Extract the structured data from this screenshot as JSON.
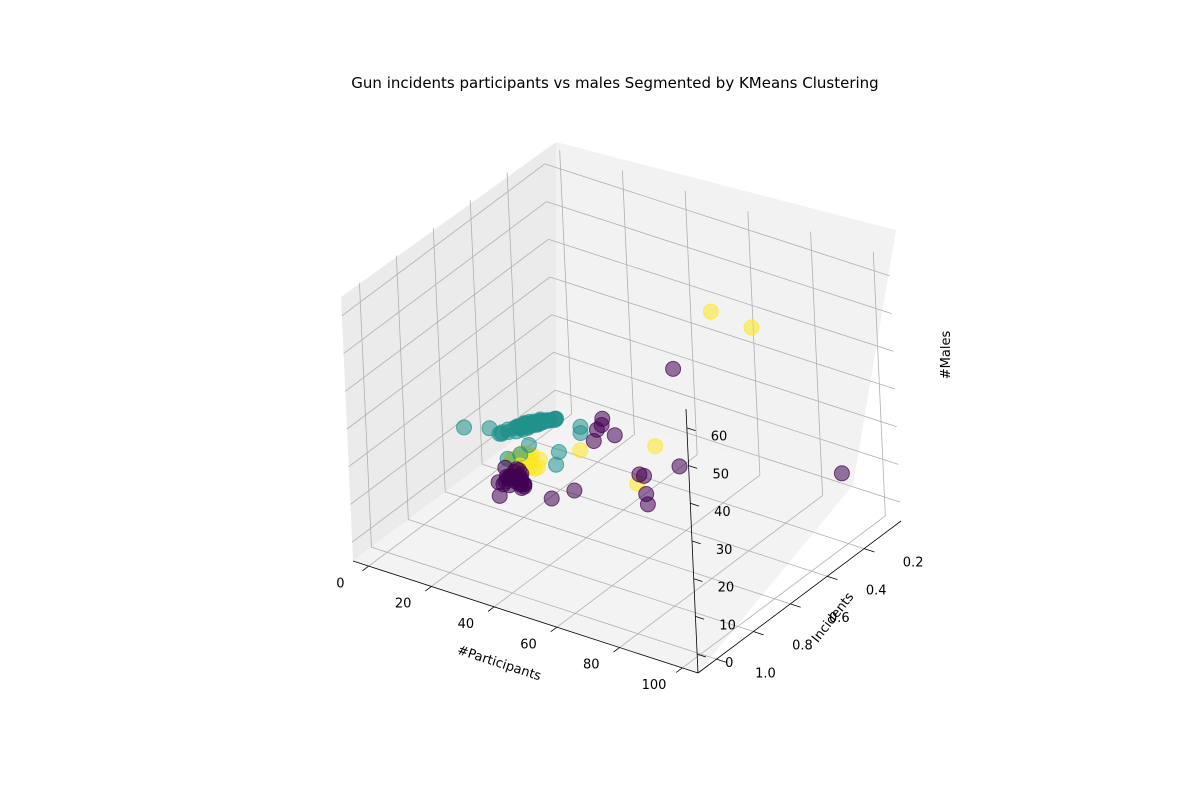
{
  "chart_data": {
    "type": "scatter",
    "title": "Gun incidents participants vs males Segmented by KMeans Clustering",
    "xlabel": "#Participants",
    "ylabel": "Incidents",
    "zlabel": "#Males",
    "x_ticks": [
      0,
      20,
      40,
      60,
      80,
      100
    ],
    "y_ticks": [
      0.2,
      0.4,
      0.6,
      0.8,
      1.0
    ],
    "z_ticks": [
      0,
      10,
      20,
      30,
      40,
      50,
      60
    ],
    "xlim": [
      -5,
      105
    ],
    "ylim": [
      0.0,
      1.1
    ],
    "zlim": [
      -5,
      65
    ],
    "grid": true,
    "series": [
      {
        "color": "#440154",
        "points": [
          [
            28,
            0.85,
            12
          ],
          [
            26,
            0.82,
            14
          ],
          [
            30,
            0.86,
            16
          ],
          [
            27,
            0.78,
            12
          ],
          [
            32,
            0.88,
            18
          ],
          [
            29,
            0.8,
            15
          ],
          [
            34,
            0.9,
            20
          ],
          [
            31,
            0.84,
            17
          ],
          [
            25,
            0.76,
            13
          ],
          [
            33,
            0.87,
            19
          ],
          [
            36,
            0.92,
            22
          ],
          [
            30,
            0.79,
            14
          ],
          [
            28,
            0.74,
            11
          ],
          [
            35,
            0.86,
            18
          ],
          [
            38,
            0.93,
            24
          ],
          [
            32,
            0.81,
            16
          ],
          [
            27,
            0.72,
            12
          ],
          [
            37,
            0.89,
            21
          ],
          [
            29,
            0.83,
            19
          ],
          [
            40,
            0.95,
            26
          ],
          [
            31,
            0.77,
            13
          ],
          [
            34,
            0.83,
            15
          ],
          [
            26,
            0.7,
            10
          ],
          [
            39,
            0.91,
            23
          ],
          [
            33,
            0.8,
            14
          ],
          [
            36,
            0.88,
            20
          ],
          [
            30,
            0.75,
            12
          ],
          [
            42,
            0.97,
            27
          ],
          [
            35,
            0.85,
            17
          ],
          [
            28,
            0.78,
            14
          ],
          [
            45,
            0.6,
            25
          ],
          [
            50,
            0.7,
            27
          ],
          [
            62,
            0.85,
            40
          ],
          [
            68,
            0.88,
            40
          ],
          [
            75,
            0.85,
            30
          ],
          [
            82,
            0.95,
            28
          ],
          [
            60,
            0.6,
            12
          ],
          [
            65,
            0.5,
            17
          ],
          [
            52,
            0.3,
            32
          ],
          [
            58,
            0.78,
            38
          ],
          [
            43,
            0.7,
            12
          ],
          [
            38,
            0.74,
            10
          ],
          [
            102,
            0.25,
            16
          ],
          [
            55,
            0.55,
            14
          ]
        ]
      },
      {
        "color": "#fde725",
        "points": [
          [
            16,
            0.55,
            6
          ],
          [
            18,
            0.58,
            8
          ],
          [
            20,
            0.6,
            9
          ],
          [
            14,
            0.52,
            5
          ],
          [
            22,
            0.63,
            10
          ],
          [
            17,
            0.54,
            7
          ],
          [
            24,
            0.66,
            12
          ],
          [
            19,
            0.57,
            8
          ],
          [
            15,
            0.5,
            6
          ],
          [
            21,
            0.61,
            10
          ],
          [
            23,
            0.64,
            11
          ],
          [
            12,
            0.48,
            4
          ],
          [
            20,
            0.56,
            8
          ],
          [
            25,
            0.68,
            13
          ],
          [
            18,
            0.52,
            7
          ],
          [
            13,
            0.46,
            5
          ],
          [
            26,
            0.7,
            14
          ],
          [
            16,
            0.49,
            6
          ],
          [
            22,
            0.6,
            9
          ],
          [
            19,
            0.62,
            11
          ],
          [
            14,
            0.55,
            7
          ],
          [
            24,
            0.62,
            10
          ],
          [
            17,
            0.58,
            9
          ],
          [
            21,
            0.53,
            6
          ],
          [
            11,
            0.45,
            4
          ],
          [
            27,
            0.72,
            15
          ],
          [
            23,
            0.58,
            8
          ],
          [
            15,
            0.46,
            5
          ],
          [
            20,
            0.65,
            12
          ],
          [
            18,
            0.47,
            5
          ],
          [
            30,
            0.45,
            10
          ],
          [
            42,
            0.25,
            7
          ],
          [
            48,
            0.45,
            6
          ],
          [
            70,
            0.38,
            55
          ],
          [
            78,
            0.3,
            50
          ]
        ]
      },
      {
        "color": "#21918c",
        "points": [
          [
            3,
            0.22,
            2
          ],
          [
            4,
            0.25,
            3
          ],
          [
            5,
            0.28,
            4
          ],
          [
            2,
            0.2,
            1
          ],
          [
            6,
            0.3,
            5
          ],
          [
            3,
            0.26,
            3
          ],
          [
            7,
            0.32,
            6
          ],
          [
            4,
            0.21,
            2
          ],
          [
            5,
            0.24,
            3
          ],
          [
            8,
            0.34,
            7
          ],
          [
            2,
            0.23,
            2
          ],
          [
            6,
            0.27,
            4
          ],
          [
            9,
            0.36,
            8
          ],
          [
            3,
            0.19,
            1
          ],
          [
            7,
            0.29,
            5
          ],
          [
            4,
            0.31,
            5
          ],
          [
            10,
            0.38,
            9
          ],
          [
            5,
            0.2,
            2
          ],
          [
            8,
            0.3,
            6
          ],
          [
            2,
            0.28,
            3
          ],
          [
            6,
            0.22,
            3
          ],
          [
            11,
            0.4,
            10
          ],
          [
            3,
            0.3,
            4
          ],
          [
            9,
            0.33,
            7
          ],
          [
            4,
            0.18,
            1
          ],
          [
            7,
            0.24,
            4
          ],
          [
            12,
            0.42,
            11
          ],
          [
            5,
            0.33,
            6
          ],
          [
            1,
            0.24,
            2
          ],
          [
            8,
            0.26,
            5
          ],
          [
            10,
            0.31,
            7
          ],
          [
            2,
            0.32,
            4
          ],
          [
            13,
            0.44,
            12
          ],
          [
            6,
            0.35,
            6
          ],
          [
            4,
            0.27,
            3
          ],
          [
            9,
            0.28,
            6
          ],
          [
            3,
            0.35,
            5
          ],
          [
            11,
            0.36,
            9
          ],
          [
            7,
            0.36,
            7
          ],
          [
            5,
            0.17,
            1
          ],
          [
            14,
            0.46,
            12
          ],
          [
            1,
            0.3,
            3
          ],
          [
            8,
            0.4,
            8
          ],
          [
            12,
            0.36,
            10
          ],
          [
            6,
            0.18,
            2
          ],
          [
            15,
            0.47,
            13
          ],
          [
            10,
            0.42,
            9
          ],
          [
            2,
            0.37,
            5
          ],
          [
            13,
            0.38,
            10
          ],
          [
            4,
            0.4,
            6
          ],
          [
            9,
            0.44,
            9
          ],
          [
            16,
            0.48,
            14
          ],
          [
            7,
            0.2,
            3
          ],
          [
            11,
            0.45,
            11
          ],
          [
            3,
            0.42,
            6
          ],
          [
            14,
            0.41,
            11
          ],
          [
            5,
            0.45,
            8
          ],
          [
            17,
            0.5,
            15
          ],
          [
            12,
            0.47,
            12
          ],
          [
            8,
            0.22,
            4
          ],
          [
            20,
            0.4,
            5
          ],
          [
            22,
            0.45,
            4
          ],
          [
            2,
            0.6,
            14
          ],
          [
            28,
            0.8,
            20
          ],
          [
            15,
            0.2,
            3
          ],
          [
            18,
            0.25,
            4
          ],
          [
            6,
            0.48,
            9
          ],
          [
            24,
            0.62,
            16
          ],
          [
            1,
            0.45,
            8
          ],
          [
            26,
            0.7,
            17
          ]
        ]
      }
    ]
  }
}
